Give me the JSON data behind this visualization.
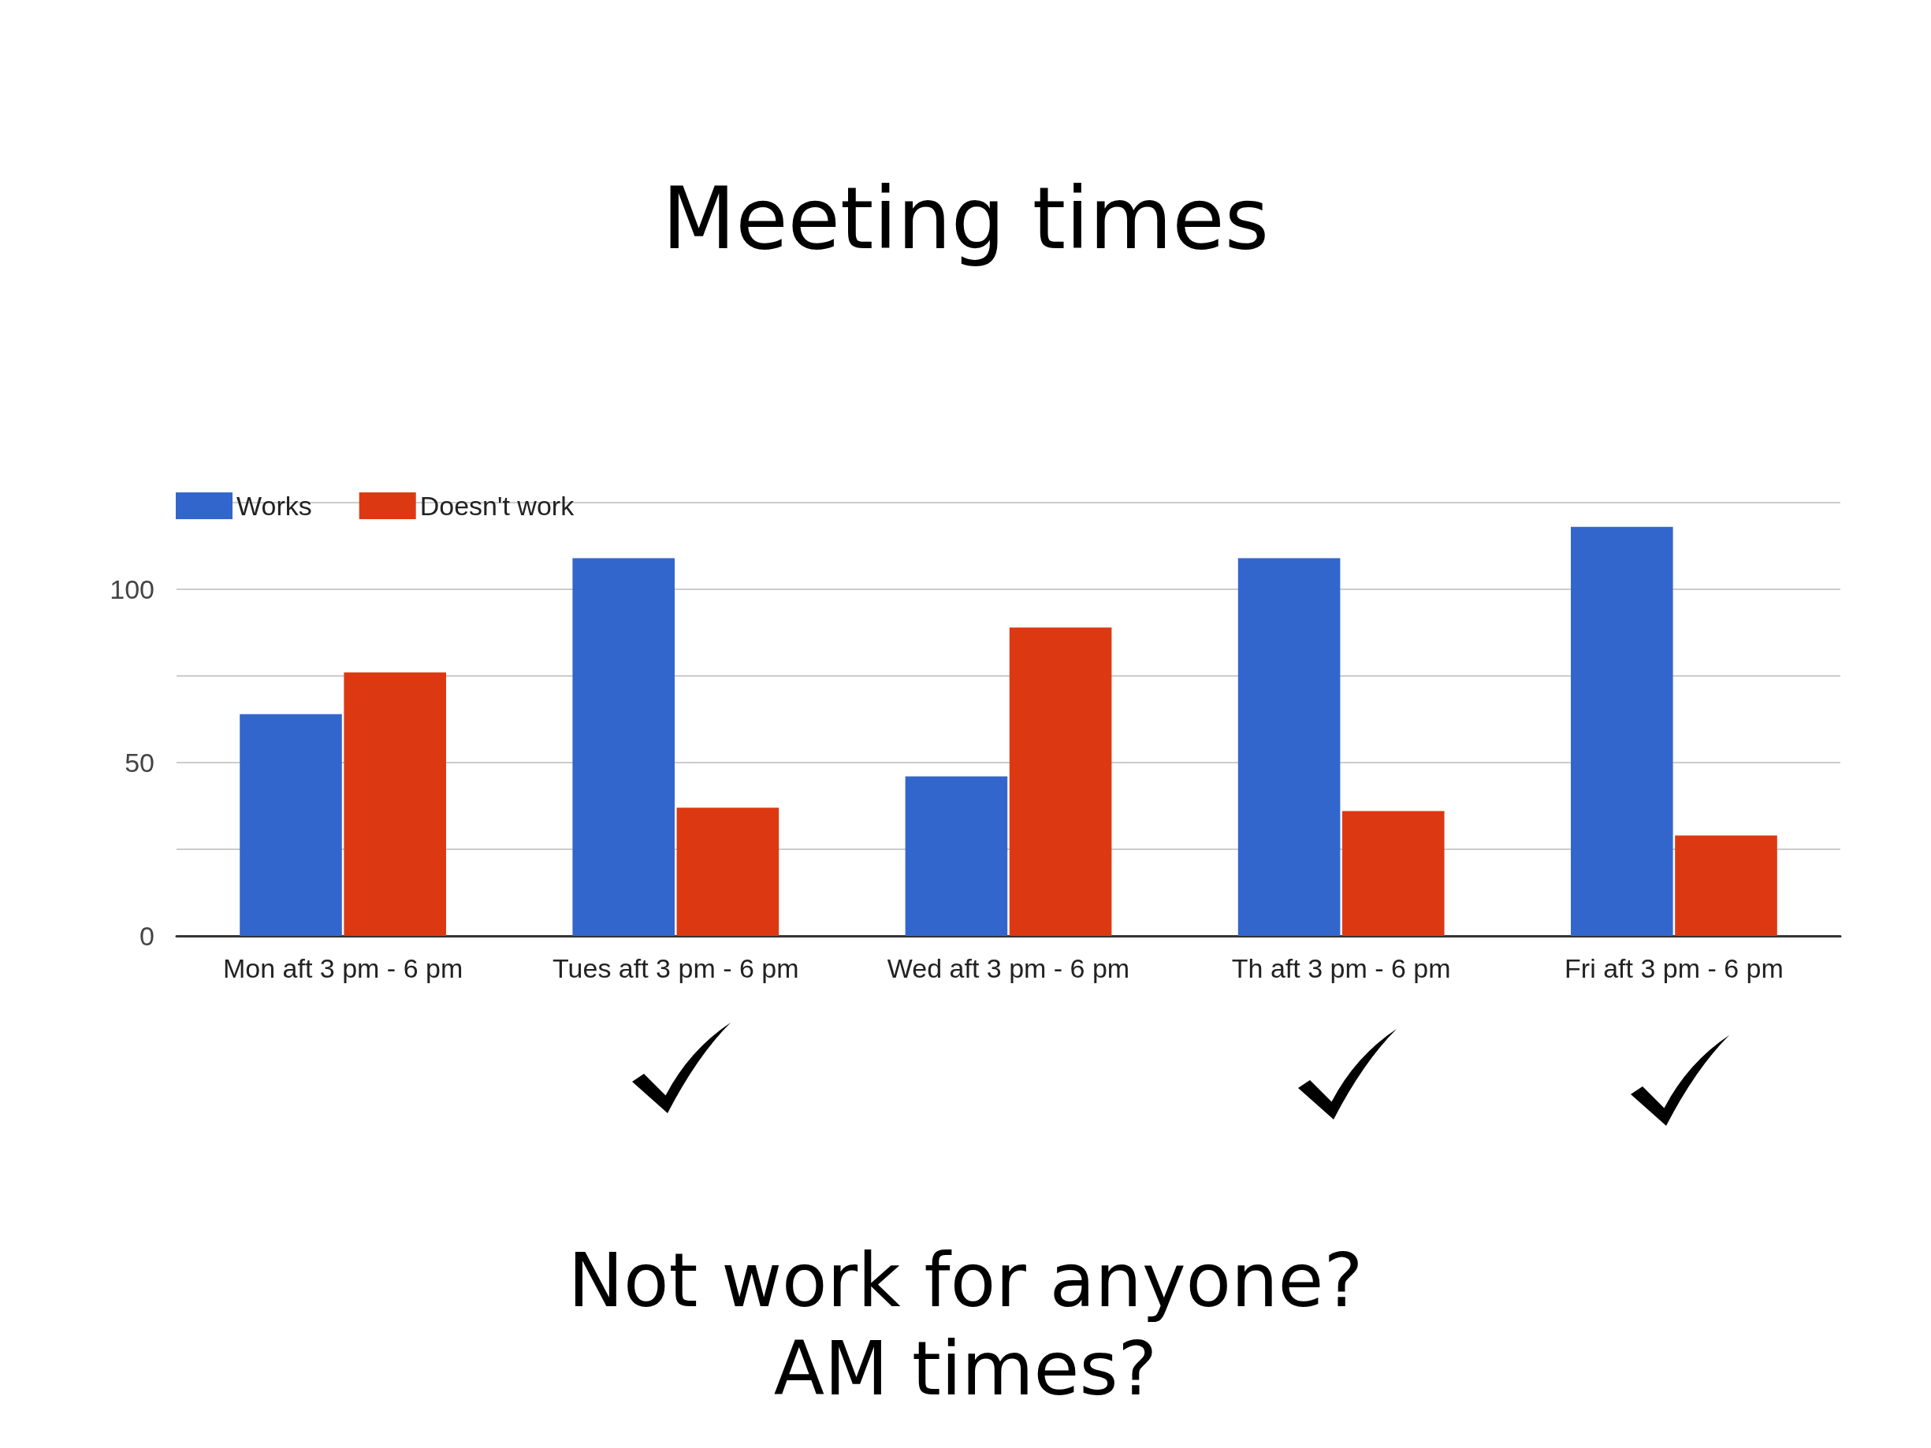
{
  "chart_data": {
    "type": "bar",
    "title": "Meeting times",
    "categories": [
      "Mon aft 3 pm - 6 pm",
      "Tues aft 3 pm - 6 pm",
      "Wed aft 3 pm - 6 pm",
      "Th aft 3 pm - 6 pm",
      "Fri aft 3 pm - 6 pm"
    ],
    "series": [
      {
        "name": "Works",
        "color": "#3366cc",
        "values": [
          64,
          109,
          46,
          109,
          118
        ]
      },
      {
        "name": "Doesn't work",
        "color": "#dc3912",
        "values": [
          76,
          37,
          89,
          36,
          29
        ]
      }
    ],
    "ylim": [
      0,
      125
    ],
    "yticks": [
      0,
      {
        "value": 25,
        "label": null
      },
      50,
      {
        "value": 75,
        "label": null
      },
      100,
      {
        "value": 125,
        "label": null
      }
    ],
    "grid": "y",
    "legend": "top left",
    "annotations": [
      "Not work for anyone?",
      "AM times?"
    ]
  }
}
